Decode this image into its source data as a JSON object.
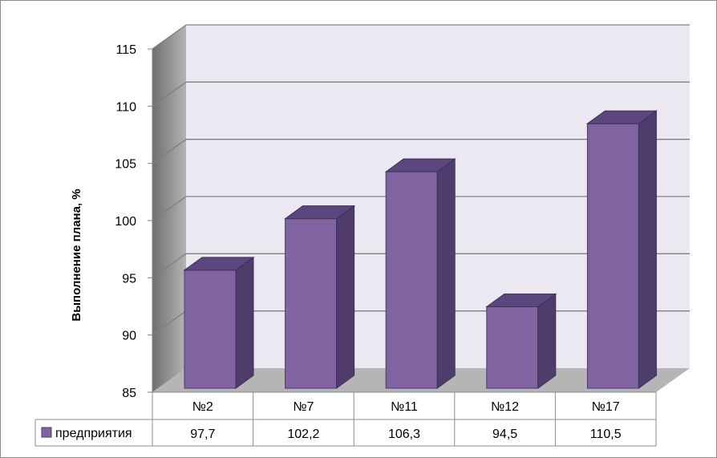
{
  "chart_data": {
    "type": "bar",
    "style": "3d-column-with-data-table",
    "categories": [
      "№2",
      "№7",
      "№11",
      "№12",
      "№17"
    ],
    "series": [
      {
        "name": "предприятия",
        "values": [
          97.7,
          102.2,
          106.3,
          94.5,
          110.5
        ],
        "value_labels": [
          "97,7",
          "102,2",
          "106,3",
          "94,5",
          "110,5"
        ]
      }
    ],
    "ylabel": "Выполнение плана, %",
    "xlabel": "",
    "ylim": [
      85,
      115
    ],
    "yticks": [
      85,
      90,
      95,
      100,
      105,
      110,
      115
    ],
    "grid": true,
    "legend": "data-table",
    "colors": {
      "bar_front": "#8064a2",
      "bar_side": "#4e3d6a",
      "bar_top": "#5c4680",
      "back_wall": "#ebe8f2",
      "side_wall": "#9a9a9a",
      "floor": "#b5b5b5",
      "grid": "#7f7f7f"
    }
  }
}
